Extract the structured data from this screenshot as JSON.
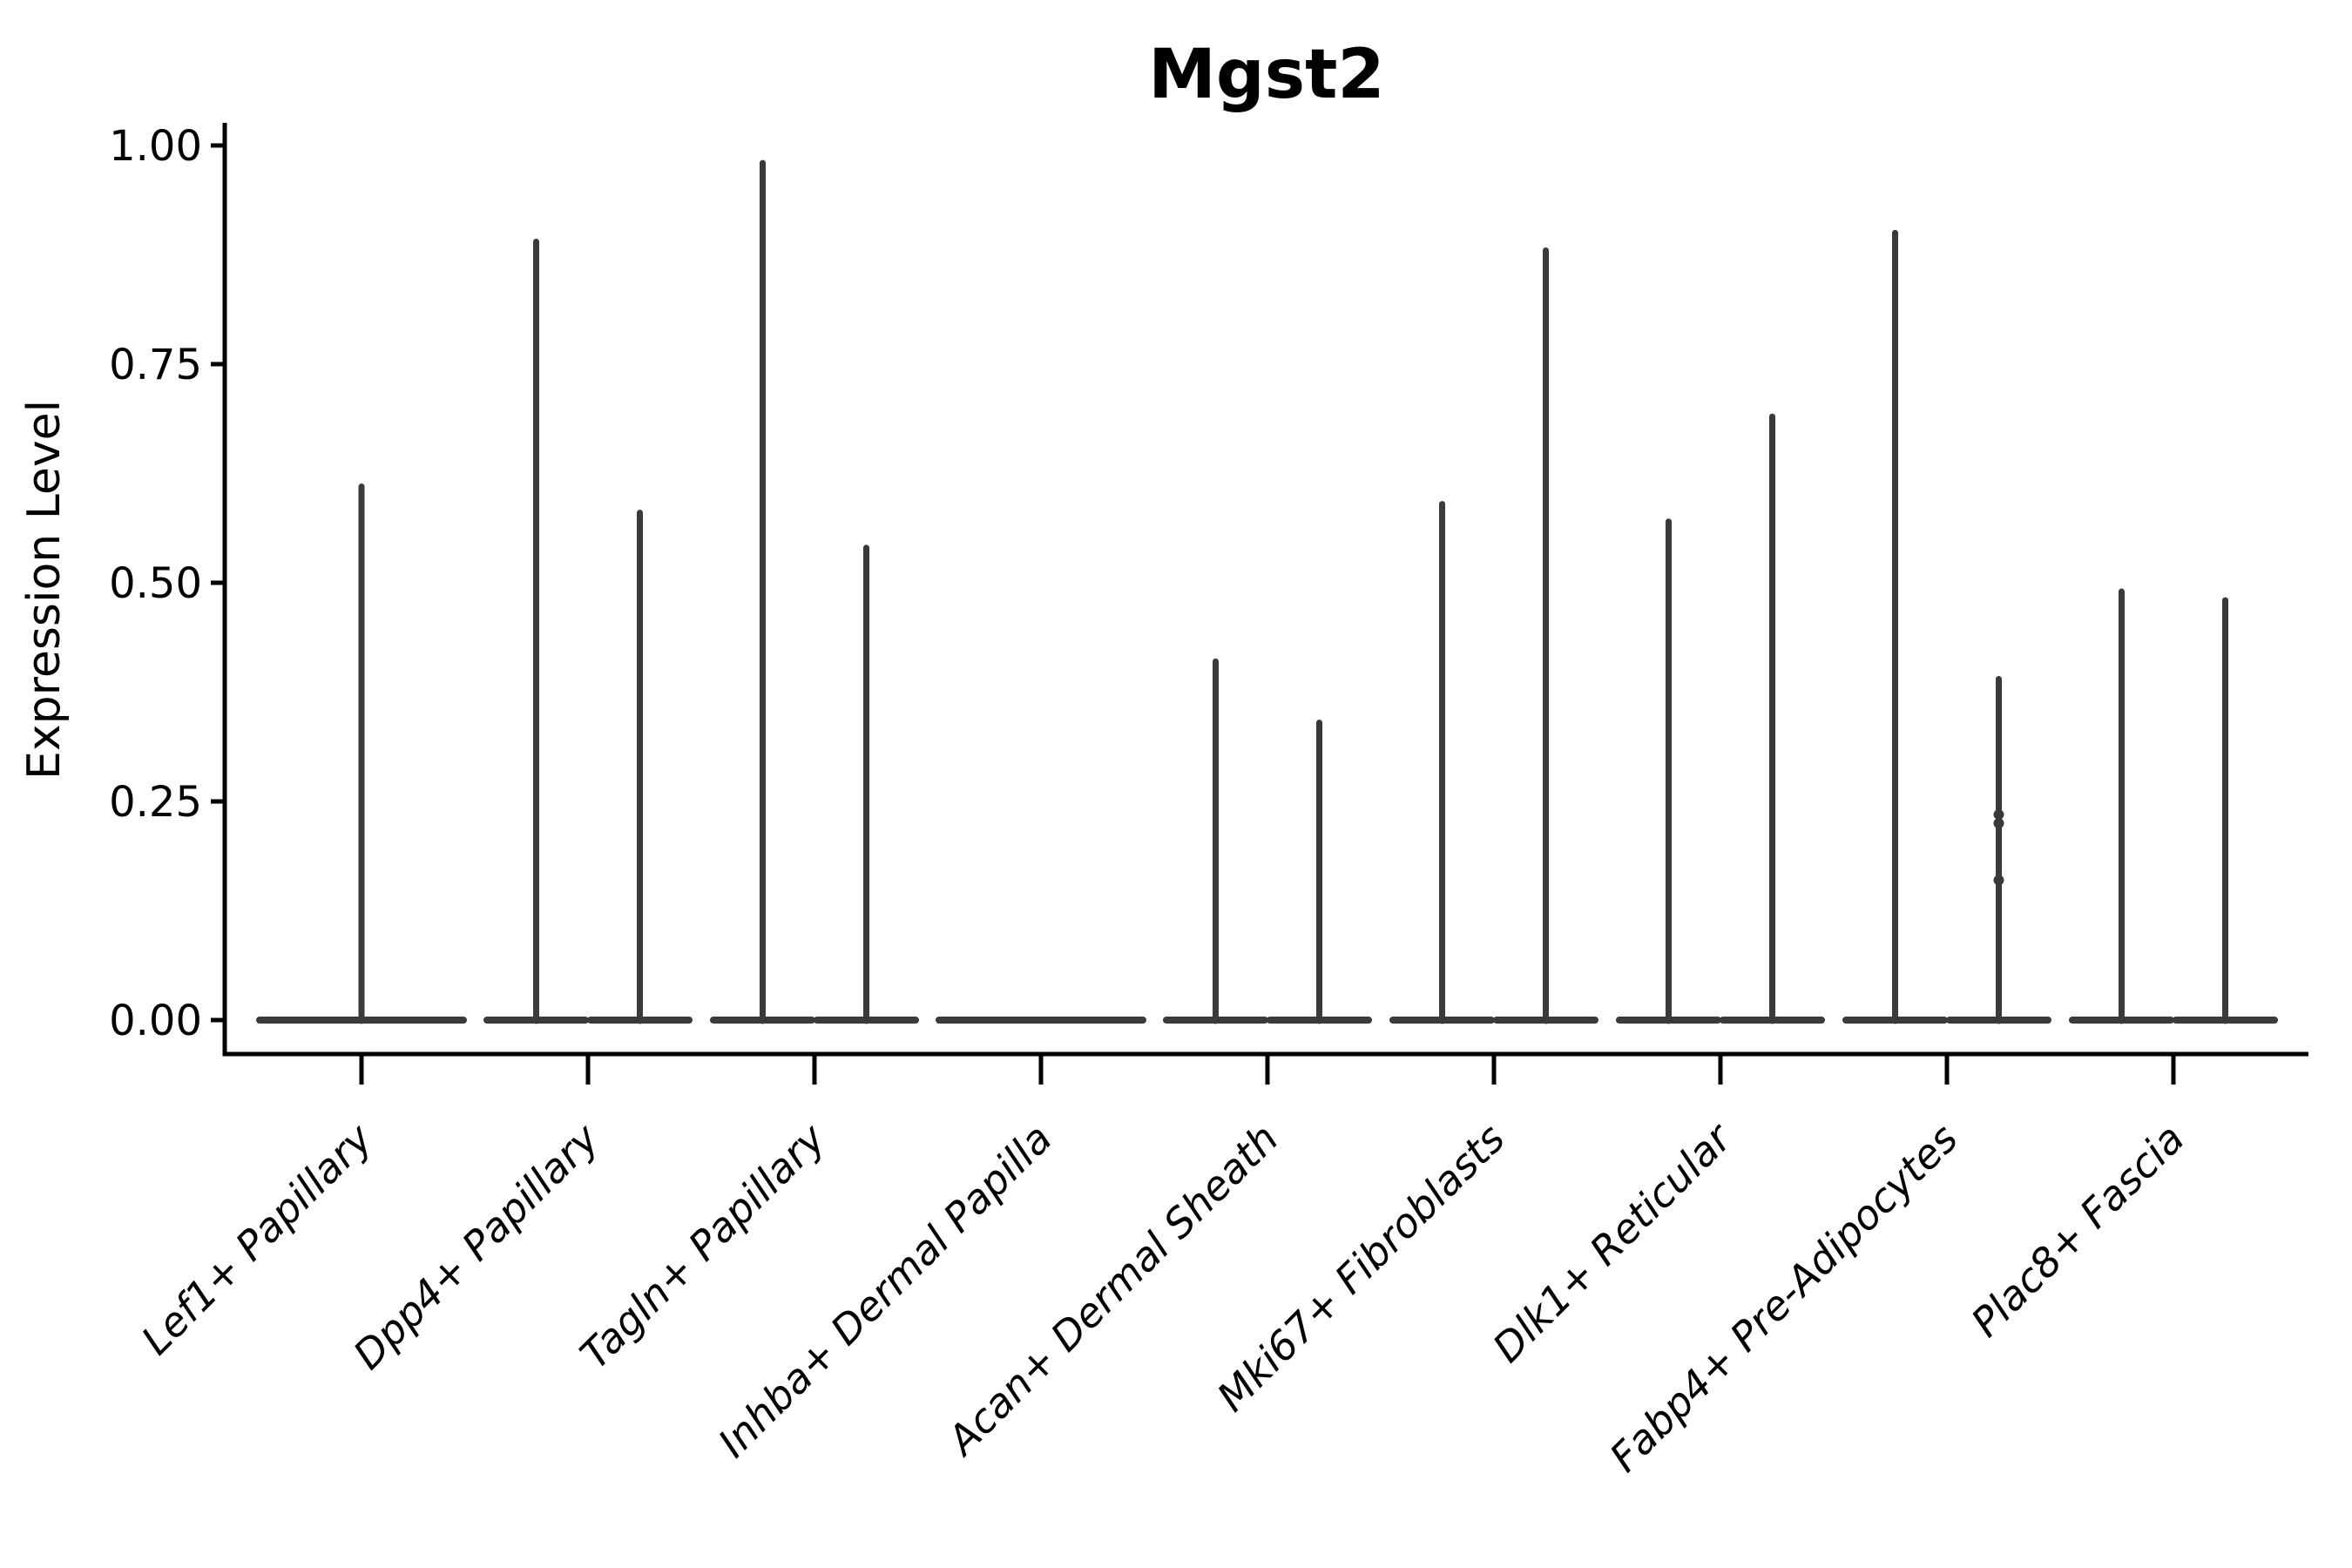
{
  "figure": {
    "title": "Mgst2"
  },
  "chart_data": {
    "type": "violin",
    "title": "Mgst2",
    "xlabel": "",
    "ylabel": "Expression Level",
    "ylim": [
      0,
      1.0
    ],
    "yticks": [
      0.0,
      0.25,
      0.5,
      0.75,
      1.0
    ],
    "ytick_labels": [
      "0.00",
      "0.25",
      "0.50",
      "0.75",
      "1.00"
    ],
    "grid": false,
    "legend": "none",
    "categories": [
      "Lef1+ Papillary",
      "Dpp4+ Papillary",
      "Tagln+ Papillary",
      "Inhba+ Dermal Papilla",
      "Acan+ Dermal Sheath",
      "Mki67+ Fibroblasts",
      "Dlk1+ Reticular",
      "Fabp4+ Pre-Adipocytes",
      "Plac8+ Fascia"
    ],
    "groups": [
      {
        "category": "Lef1+ Papillary",
        "violins": [
          {
            "position": "center",
            "span": "full",
            "max": 0.61
          }
        ]
      },
      {
        "category": "Dpp4+ Papillary",
        "violins": [
          {
            "position": "left",
            "span": "half",
            "max": 0.89
          },
          {
            "position": "right",
            "span": "half",
            "max": 0.58
          }
        ]
      },
      {
        "category": "Tagln+ Papillary",
        "violins": [
          {
            "position": "left",
            "span": "half",
            "max": 0.98
          },
          {
            "position": "right",
            "span": "half",
            "max": 0.54
          }
        ]
      },
      {
        "category": "Inhba+ Dermal Papilla",
        "violins": [
          {
            "position": "center",
            "span": "full",
            "max": 0.0
          }
        ]
      },
      {
        "category": "Acan+ Dermal Sheath",
        "violins": [
          {
            "position": "left",
            "span": "half",
            "max": 0.41
          },
          {
            "position": "right",
            "span": "half",
            "max": 0.34
          }
        ]
      },
      {
        "category": "Mki67+ Fibroblasts",
        "violins": [
          {
            "position": "left",
            "span": "half",
            "max": 0.59
          },
          {
            "position": "right",
            "span": "half",
            "max": 0.88
          }
        ]
      },
      {
        "category": "Dlk1+ Reticular",
        "violins": [
          {
            "position": "left",
            "span": "half",
            "max": 0.57
          },
          {
            "position": "right",
            "span": "half",
            "max": 0.69
          }
        ]
      },
      {
        "category": "Fabp4+ Pre-Adipocytes",
        "violins": [
          {
            "position": "left",
            "span": "half",
            "max": 0.9
          },
          {
            "position": "right",
            "span": "half",
            "max": 0.39,
            "points": [
              0.235,
              0.225,
              0.16
            ]
          }
        ]
      },
      {
        "category": "Plac8+ Fascia",
        "violins": [
          {
            "position": "left",
            "span": "half",
            "max": 0.49
          },
          {
            "position": "right",
            "span": "half",
            "max": 0.48
          }
        ]
      }
    ],
    "style": {
      "violin_line_color": "#3a3a3a",
      "axis_color": "#000000",
      "background_color": "#ffffff"
    }
  }
}
